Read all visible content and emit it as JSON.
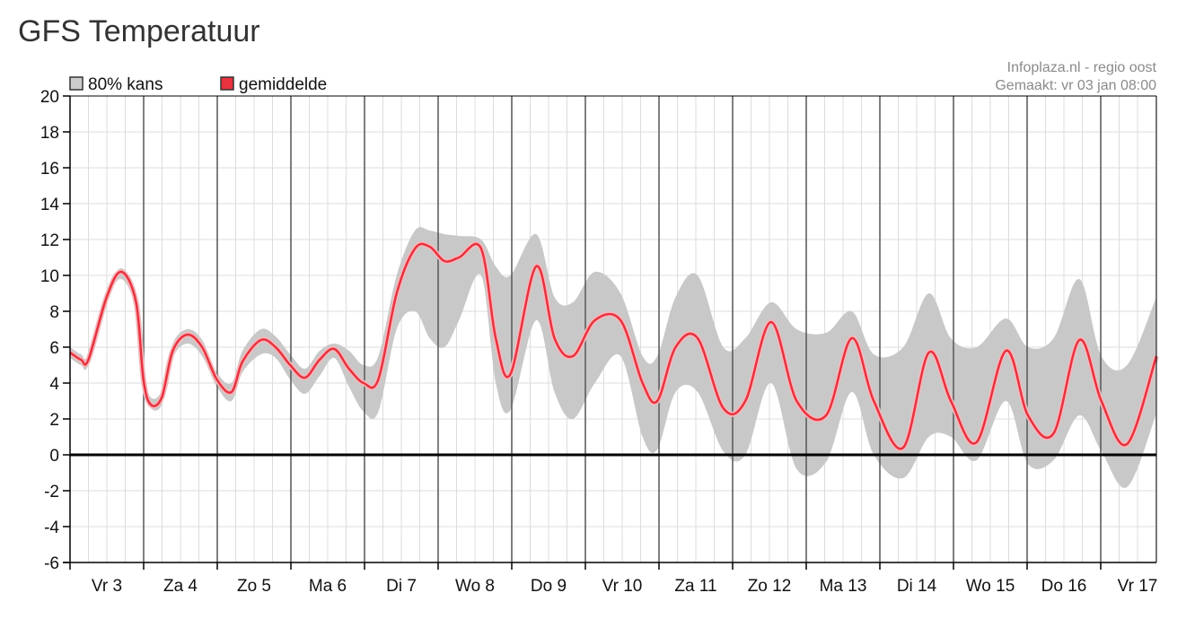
{
  "page": {
    "title": "GFS Temperatuur"
  },
  "credits": {
    "source": "Infoplaza.nl - regio oost",
    "made": "Gemaakt: vr 03 jan 08:00"
  },
  "colors": {
    "band": "#c8c8c8",
    "band_legend": "#cccccc",
    "mean": "#e8323e",
    "grid_minor": "#dcdcdc",
    "grid_day": "#555555",
    "zero_line": "#000000"
  },
  "chart_data": {
    "type": "area",
    "title": "GFS Temperatuur",
    "xlabel": "",
    "ylabel": "",
    "xlim": [
      0,
      14.8
    ],
    "ylim": [
      -6,
      20
    ],
    "y_ticks": [
      "20",
      "18",
      "16",
      "14",
      "12",
      "10",
      "8",
      "6",
      "4",
      "2",
      "0",
      "-2",
      "-4",
      "-6"
    ],
    "y_tick_values": [
      20,
      18,
      16,
      14,
      12,
      10,
      8,
      6,
      4,
      2,
      0,
      -2,
      -4,
      -6
    ],
    "x_tick_labels": [
      "Vr 3",
      "Za 4",
      "Zo 5",
      "Ma 6",
      "Di 7",
      "Wo 8",
      "Do 9",
      "Vr 10",
      "Za 11",
      "Zo 12",
      "Ma 13",
      "Di 14",
      "Wo 15",
      "Do 16",
      "Vr 17"
    ],
    "grid": true,
    "legend": {
      "position": "top-left",
      "entries": [
        "80% kans",
        "gemiddelde"
      ]
    },
    "series": [
      {
        "name": "gemiddelde",
        "x": [
          0,
          0.15,
          0.25,
          0.5,
          0.7,
          0.9,
          1.0,
          1.1,
          1.25,
          1.4,
          1.6,
          1.8,
          2.0,
          2.2,
          2.35,
          2.6,
          2.8,
          3.0,
          3.2,
          3.4,
          3.6,
          3.8,
          4.0,
          4.2,
          4.45,
          4.7,
          4.9,
          5.1,
          5.3,
          5.6,
          5.8,
          6.0,
          6.35,
          6.6,
          6.85,
          7.15,
          7.5,
          7.8,
          8.0,
          8.25,
          8.55,
          8.9,
          9.2,
          9.55,
          9.9,
          10.3,
          10.65,
          10.95,
          11.35,
          11.7,
          12.0,
          12.35,
          12.75,
          13.05,
          13.4,
          13.75,
          14.05,
          14.4,
          14.8
        ],
        "values": [
          5.7,
          5.3,
          5.3,
          8.8,
          10.2,
          8.5,
          4.2,
          2.8,
          3.2,
          5.8,
          6.7,
          6.0,
          4.2,
          3.5,
          5.2,
          6.4,
          6.0,
          5.0,
          4.3,
          5.3,
          5.9,
          4.8,
          4.0,
          4.2,
          9.0,
          11.5,
          11.6,
          10.8,
          11.0,
          11.5,
          6.5,
          4.5,
          10.5,
          6.5,
          5.5,
          7.5,
          7.5,
          4.0,
          3.0,
          6.0,
          6.5,
          2.6,
          3.0,
          7.4,
          3.0,
          2.2,
          6.5,
          3.0,
          0.4,
          5.7,
          3.0,
          0.7,
          5.8,
          2.2,
          1.2,
          6.4,
          3.0,
          0.6,
          5.5
        ]
      },
      {
        "name": "80% kans",
        "x": [
          0,
          0.15,
          0.25,
          0.5,
          0.7,
          0.9,
          1.0,
          1.1,
          1.25,
          1.4,
          1.6,
          1.8,
          2.0,
          2.2,
          2.35,
          2.6,
          2.8,
          3.0,
          3.2,
          3.4,
          3.6,
          3.8,
          4.0,
          4.2,
          4.45,
          4.7,
          4.9,
          5.1,
          5.3,
          5.6,
          5.8,
          6.0,
          6.35,
          6.6,
          6.85,
          7.15,
          7.5,
          7.8,
          8.0,
          8.25,
          8.55,
          8.9,
          9.2,
          9.55,
          9.9,
          10.3,
          10.65,
          10.95,
          11.35,
          11.7,
          12.0,
          12.35,
          12.75,
          13.05,
          13.4,
          13.75,
          14.05,
          14.4,
          14.8
        ],
        "upper": [
          6.0,
          5.6,
          5.6,
          9.0,
          10.4,
          8.8,
          4.6,
          3.2,
          3.6,
          6.2,
          7.0,
          6.4,
          4.6,
          4.0,
          5.8,
          7.0,
          6.6,
          5.6,
          4.8,
          5.8,
          6.2,
          5.8,
          5.0,
          5.5,
          10.0,
          12.5,
          12.5,
          12.3,
          12.2,
          12.0,
          10.5,
          10.0,
          12.3,
          8.8,
          8.5,
          10.2,
          9.0,
          5.5,
          5.5,
          8.8,
          10.0,
          6.0,
          6.5,
          8.5,
          7.0,
          6.8,
          8.0,
          5.6,
          6.0,
          9.0,
          6.5,
          6.0,
          7.6,
          6.0,
          6.5,
          9.8,
          5.5,
          5.0,
          8.8
        ],
        "lower": [
          5.4,
          5.0,
          5.0,
          8.5,
          9.8,
          8.0,
          3.8,
          2.6,
          2.8,
          5.4,
          6.2,
          5.5,
          3.8,
          3.0,
          4.6,
          5.6,
          5.4,
          4.2,
          3.4,
          4.4,
          5.4,
          3.8,
          2.4,
          2.4,
          7.0,
          8.0,
          6.5,
          6.0,
          7.5,
          10.0,
          4.0,
          2.5,
          7.5,
          3.5,
          2.0,
          4.0,
          5.5,
          1.0,
          0.3,
          3.5,
          3.5,
          0.2,
          0.0,
          4.0,
          -0.8,
          -0.4,
          3.5,
          0.0,
          -1.3,
          1.0,
          1.0,
          -0.3,
          3.0,
          -0.5,
          -0.3,
          2.2,
          0.2,
          -1.8,
          2.3
        ]
      }
    ]
  }
}
